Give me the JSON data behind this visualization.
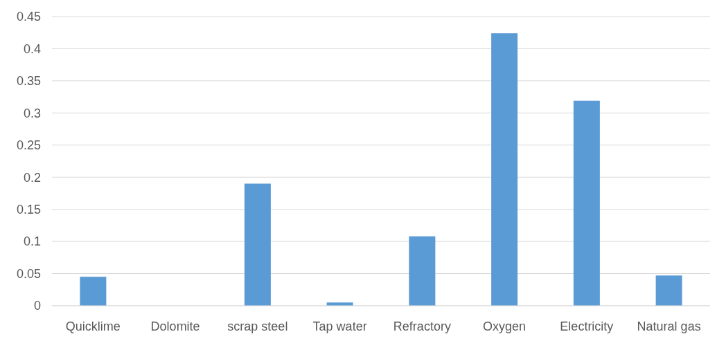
{
  "chart_data": {
    "type": "bar",
    "categories": [
      "Quicklime",
      "Dolomite",
      "scrap steel",
      "Tap water",
      "Refractory",
      "Oxygen",
      "Electricity",
      "Natural gas"
    ],
    "values": [
      0.045,
      0,
      0.19,
      0.005,
      0.108,
      0.424,
      0.319,
      0.047
    ],
    "color": "#5b9bd5",
    "ylim": [
      0,
      0.45
    ],
    "yticks": [
      0,
      0.05,
      0.1,
      0.15,
      0.2,
      0.25,
      0.3,
      0.35,
      0.4,
      0.45
    ],
    "grid": "y"
  }
}
